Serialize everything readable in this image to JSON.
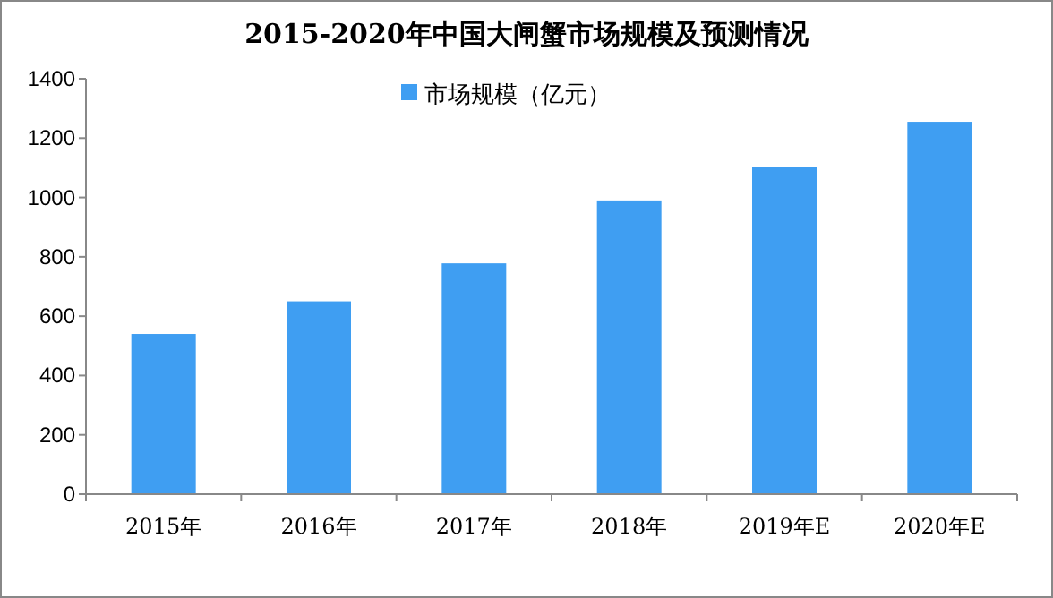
{
  "chart_data": {
    "type": "bar",
    "title": "2015-2020年中国大闸蟹市场规模及预测情况",
    "categories": [
      "2015年",
      "2016年",
      "2017年",
      "2018年",
      "2019年E",
      "2020年E"
    ],
    "series": [
      {
        "name": "市场规模（亿元）",
        "color": "#3f9ef2",
        "values": [
          540,
          650,
          778,
          990,
          1104,
          1255
        ]
      }
    ],
    "ylim": [
      0,
      1400
    ],
    "yticks": [
      0,
      200,
      400,
      600,
      800,
      1000,
      1200,
      1400
    ],
    "grid": false,
    "legend": "top"
  }
}
